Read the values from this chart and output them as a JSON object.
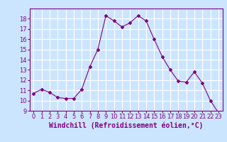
{
  "x": [
    0,
    1,
    2,
    3,
    4,
    5,
    6,
    7,
    8,
    9,
    10,
    11,
    12,
    13,
    14,
    15,
    16,
    17,
    18,
    19,
    20,
    21,
    22,
    23
  ],
  "y": [
    10.7,
    11.1,
    10.8,
    10.3,
    10.2,
    10.2,
    11.1,
    13.3,
    15.0,
    18.3,
    17.8,
    17.2,
    17.6,
    18.3,
    17.8,
    16.0,
    14.3,
    13.0,
    11.9,
    11.8,
    12.8,
    11.7,
    10.0,
    8.8
  ],
  "line_color": "#800080",
  "marker": "D",
  "marker_size": 2,
  "background_color": "#cce5ff",
  "grid_color": "#ffffff",
  "xlabel": "Windchill (Refroidissement éolien,°C)",
  "xlabel_color": "#800080",
  "xlabel_fontsize": 7,
  "tick_color": "#800080",
  "tick_fontsize": 6,
  "ylim": [
    9,
    19
  ],
  "xlim": [
    -0.5,
    23.5
  ],
  "yticks": [
    9,
    10,
    11,
    12,
    13,
    14,
    15,
    16,
    17,
    18
  ],
  "xticks": [
    0,
    1,
    2,
    3,
    4,
    5,
    6,
    7,
    8,
    9,
    10,
    11,
    12,
    13,
    14,
    15,
    16,
    17,
    18,
    19,
    20,
    21,
    22,
    23
  ]
}
